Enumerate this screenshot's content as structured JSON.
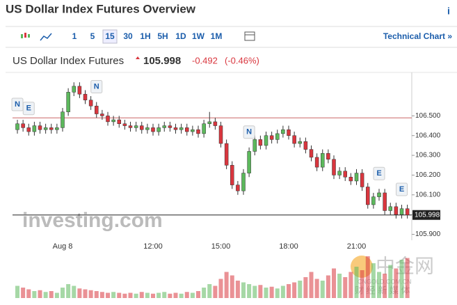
{
  "header": {
    "title": "US Dollar Index Futures Overview",
    "info": "i"
  },
  "toolbar": {
    "intervals": [
      "1",
      "5",
      "15",
      "30",
      "1H",
      "5H",
      "1D",
      "1W",
      "1M"
    ],
    "active": "15",
    "link": "Technical Chart »"
  },
  "quote": {
    "name": "US Dollar Index Futures",
    "price": "105.998",
    "change": "-0.492",
    "change_pct": "(-0.46%)"
  },
  "watermark": {
    "brand": "investing.com",
    "logo": "中金网",
    "site": "CNGOLD.COM.CN",
    "tagline": "财 经 新 媒 体"
  },
  "chart_data": {
    "type": "candlestick",
    "categories": [
      null,
      null,
      null,
      null,
      null,
      null,
      null,
      null,
      "Aug 8",
      null,
      null,
      null,
      null,
      null,
      null,
      null,
      null,
      null,
      null,
      null,
      null,
      null,
      null,
      null,
      "12:00",
      null,
      null,
      null,
      null,
      null,
      null,
      null,
      null,
      null,
      null,
      null,
      "15:00",
      null,
      null,
      null,
      null,
      null,
      null,
      null,
      null,
      null,
      null,
      null,
      "18:00",
      null,
      null,
      null,
      null,
      null,
      null,
      null,
      null,
      null,
      null,
      null,
      "21:00",
      null,
      null,
      null,
      null,
      null,
      null,
      null,
      null,
      null
    ],
    "open": [
      106.43,
      106.46,
      106.44,
      106.42,
      106.45,
      106.43,
      106.44,
      106.43,
      106.44,
      106.52,
      106.62,
      106.65,
      106.61,
      106.58,
      106.55,
      106.51,
      106.5,
      106.47,
      106.48,
      106.46,
      106.45,
      106.44,
      106.45,
      106.43,
      106.44,
      106.42,
      106.44,
      106.45,
      106.44,
      106.43,
      106.44,
      106.42,
      106.43,
      106.41,
      106.46,
      106.47,
      106.45,
      106.36,
      106.25,
      106.15,
      106.12,
      106.21,
      106.32,
      106.38,
      106.35,
      106.4,
      106.38,
      106.41,
      106.43,
      106.4,
      106.36,
      106.37,
      106.33,
      106.29,
      106.24,
      106.31,
      106.28,
      106.2,
      106.22,
      106.19,
      106.17,
      106.21,
      106.14,
      106.05,
      106.09,
      106.11,
      106.02,
      106.04,
      106.0,
      106.03
    ],
    "high": [
      106.48,
      106.48,
      106.46,
      106.47,
      106.47,
      106.46,
      106.46,
      106.46,
      106.54,
      106.64,
      106.67,
      106.67,
      106.63,
      106.6,
      106.57,
      106.53,
      106.52,
      106.5,
      106.5,
      106.48,
      106.47,
      106.47,
      106.47,
      106.46,
      106.46,
      106.46,
      106.47,
      106.47,
      106.46,
      106.46,
      106.46,
      106.45,
      106.45,
      106.48,
      106.52,
      106.49,
      106.47,
      106.38,
      106.27,
      106.17,
      106.23,
      106.34,
      106.4,
      106.4,
      106.42,
      106.42,
      106.43,
      106.45,
      106.45,
      106.42,
      106.39,
      106.39,
      106.35,
      106.31,
      106.33,
      106.33,
      106.3,
      106.24,
      106.24,
      106.21,
      106.23,
      106.23,
      106.16,
      106.11,
      106.13,
      106.13,
      106.06,
      106.06,
      106.05,
      106.05
    ],
    "low": [
      106.41,
      106.42,
      106.4,
      106.4,
      106.41,
      106.41,
      106.41,
      106.41,
      106.42,
      106.5,
      106.6,
      106.59,
      106.56,
      106.53,
      106.49,
      106.48,
      106.45,
      106.45,
      106.44,
      106.43,
      106.42,
      106.42,
      106.41,
      106.41,
      106.4,
      106.4,
      106.42,
      106.42,
      106.41,
      106.41,
      106.4,
      106.4,
      106.39,
      106.39,
      106.44,
      106.43,
      106.34,
      106.23,
      106.13,
      106.1,
      106.1,
      106.19,
      106.3,
      106.33,
      106.33,
      106.36,
      106.36,
      106.39,
      106.38,
      106.34,
      106.34,
      106.31,
      106.27,
      106.22,
      106.22,
      106.26,
      106.18,
      106.18,
      106.17,
      106.15,
      106.15,
      106.12,
      106.03,
      106.03,
      106.07,
      106.0,
      106.0,
      105.98,
      105.98,
      105.98
    ],
    "close": [
      106.46,
      106.44,
      106.42,
      106.45,
      106.43,
      106.44,
      106.43,
      106.44,
      106.52,
      106.62,
      106.65,
      106.61,
      106.58,
      106.55,
      106.51,
      106.5,
      106.47,
      106.48,
      106.46,
      106.45,
      106.44,
      106.45,
      106.43,
      106.44,
      106.42,
      106.44,
      106.45,
      106.44,
      106.43,
      106.44,
      106.42,
      106.43,
      106.41,
      106.46,
      106.47,
      106.45,
      106.36,
      106.25,
      106.15,
      106.12,
      106.21,
      106.32,
      106.38,
      106.35,
      106.4,
      106.38,
      106.41,
      106.43,
      106.4,
      106.36,
      106.37,
      106.33,
      106.29,
      106.24,
      106.31,
      106.28,
      106.2,
      106.22,
      106.19,
      106.17,
      106.21,
      106.14,
      106.05,
      106.09,
      106.11,
      106.02,
      106.04,
      106.0,
      106.03,
      105.998
    ],
    "volume": [
      14,
      12,
      10,
      8,
      9,
      7,
      8,
      6,
      12,
      16,
      14,
      11,
      10,
      9,
      8,
      7,
      6,
      7,
      6,
      5,
      6,
      5,
      7,
      6,
      5,
      6,
      7,
      5,
      6,
      5,
      7,
      6,
      8,
      12,
      16,
      14,
      22,
      30,
      26,
      20,
      18,
      16,
      14,
      15,
      12,
      13,
      11,
      14,
      16,
      18,
      20,
      24,
      30,
      22,
      20,
      26,
      34,
      28,
      24,
      30,
      36,
      32,
      48,
      40,
      30,
      28,
      38,
      34,
      44,
      46
    ],
    "up_color": "#5cb85c",
    "down_color": "#d9363e",
    "ylim": [
      105.87,
      106.72
    ],
    "yticks": [
      {
        "value": 105.9,
        "label": "105.900"
      },
      {
        "value": 106.0,
        "label": "106.000"
      },
      {
        "value": 106.1,
        "label": "106.100"
      },
      {
        "value": 106.2,
        "label": "106.200"
      },
      {
        "value": 106.3,
        "label": "106.300"
      },
      {
        "value": 106.4,
        "label": "106.400"
      },
      {
        "value": 106.5,
        "label": "106.500"
      }
    ],
    "prev_close": 106.49,
    "last": 105.998,
    "last_label": "105.998",
    "events": [
      {
        "label": "N",
        "index": 0
      },
      {
        "label": "E",
        "index": 2
      },
      {
        "label": "N",
        "index": 14
      },
      {
        "label": "N",
        "index": 41
      },
      {
        "label": "E",
        "index": 64
      },
      {
        "label": "E",
        "index": 68
      }
    ]
  }
}
